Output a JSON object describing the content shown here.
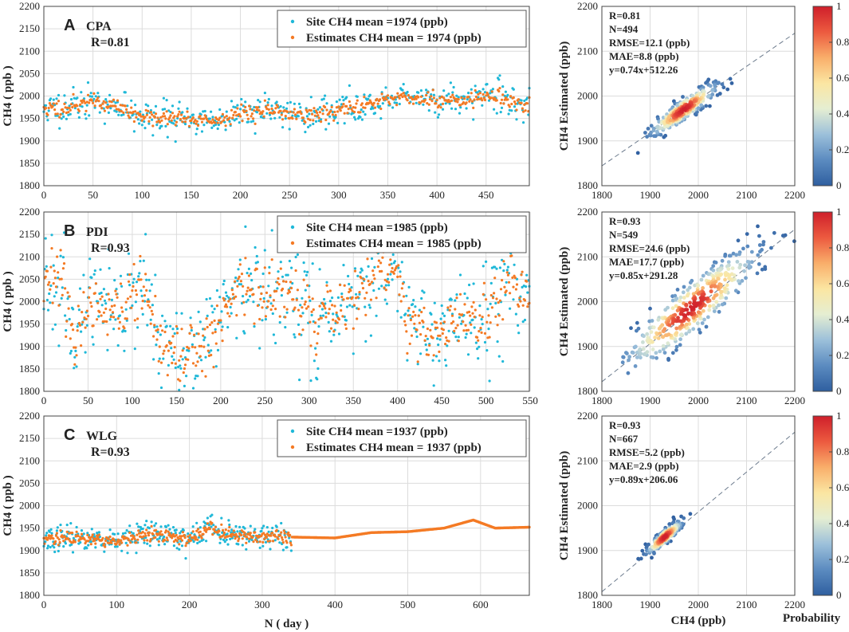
{
  "colors": {
    "site": "#1fb8d8",
    "estimate": "#f47a24",
    "fit_line": "#6b7a8c",
    "colormap": [
      "#2f5fa0",
      "#5b8bc0",
      "#9cc0da",
      "#e5eed2",
      "#fbe6a2",
      "#f9ae6a",
      "#ec5a3f",
      "#cf1f2b"
    ]
  },
  "chart_data": [
    {
      "id": "A",
      "type": "scatter",
      "letter": "A",
      "site": "CPA",
      "r_label": "R=0.81",
      "xlim": [
        0,
        494
      ],
      "ylim": [
        1800,
        2200
      ],
      "xticks": [
        0,
        50,
        100,
        150,
        200,
        250,
        300,
        350,
        400,
        450
      ],
      "yticks": [
        1800,
        1850,
        1900,
        1950,
        2000,
        2050,
        2100,
        2150,
        2200
      ],
      "ylabel": "CH4 ( ppb )",
      "xlabel": "",
      "legend": [
        "Site CH4 mean =1974 (ppb)",
        "Estimates CH4 mean = 1974 (ppb)"
      ],
      "series_profile": {
        "knots_x": [
          0,
          25,
          50,
          75,
          100,
          125,
          150,
          175,
          200,
          225,
          250,
          275,
          300,
          325,
          350,
          375,
          400,
          425,
          450,
          475,
          494
        ],
        "knots_y": [
          1970,
          1975,
          1990,
          1975,
          1955,
          1950,
          1948,
          1945,
          1965,
          1965,
          1962,
          1958,
          1968,
          1980,
          1995,
          1995,
          1990,
          1990,
          2000,
          1992,
          1975
        ],
        "site_noise": 18,
        "estimate_noise": 12,
        "end_day": 494,
        "seed": 11
      },
      "scatter": {
        "R": "R=0.81",
        "N": "N=494",
        "RMSE": "RMSE=12.1 (ppb)",
        "MAE": "MAE=8.8 (ppb)",
        "fit": "y=0.74x+512.26",
        "slope": 0.74,
        "intercept": 512.26,
        "center": [
          1970,
          1970
        ],
        "spread": [
          35,
          22
        ],
        "n_points": 300
      }
    },
    {
      "id": "B",
      "type": "scatter",
      "letter": "B",
      "site": "PDI",
      "r_label": "R=0.93",
      "xlim": [
        0,
        549
      ],
      "ylim": [
        1800,
        2200
      ],
      "xticks": [
        0,
        50,
        100,
        150,
        200,
        250,
        300,
        350,
        400,
        450,
        500,
        550
      ],
      "yticks": [
        1800,
        1850,
        1900,
        1950,
        2000,
        2050,
        2100,
        2150,
        2200
      ],
      "ylabel": "CH4 ( ppb )",
      "xlabel": "",
      "legend": [
        "Site CH4 mean =1985 (ppb)",
        "Estimates CH4 mean = 1985 (ppb)"
      ],
      "series_profile": {
        "knots_x": [
          0,
          15,
          35,
          55,
          80,
          110,
          130,
          160,
          190,
          220,
          250,
          280,
          310,
          340,
          370,
          400,
          410,
          440,
          470,
          500,
          525,
          549
        ],
        "knots_y": [
          2050,
          2080,
          1920,
          1980,
          1960,
          2040,
          1900,
          1890,
          1910,
          2040,
          2010,
          2020,
          1960,
          1990,
          2040,
          2080,
          1930,
          1930,
          1960,
          1950,
          2030,
          2000
        ],
        "site_noise": 60,
        "estimate_noise": 45,
        "end_day": 549,
        "seed": 23
      },
      "scatter": {
        "R": "R=0.93",
        "N": "N=549",
        "RMSE": "RMSE=24.6 (ppb)",
        "MAE": "MAE=17.7 (ppb)",
        "fit": "y=0.85x+291.28",
        "slope": 0.85,
        "intercept": 291.28,
        "center": [
          1985,
          1985
        ],
        "spread": [
          70,
          55
        ],
        "n_points": 420
      }
    },
    {
      "id": "C",
      "type": "scatter",
      "letter": "C",
      "site": "WLG",
      "r_label": "R=0.93",
      "xlim": [
        0,
        667
      ],
      "ylim": [
        1800,
        2200
      ],
      "xticks": [
        0,
        100,
        200,
        300,
        400,
        500,
        600
      ],
      "yticks": [
        1800,
        1850,
        1900,
        1950,
        2000,
        2050,
        2100,
        2150,
        2200
      ],
      "ylabel": "CH4 ( ppb )",
      "xlabel": "N ( day )",
      "legend": [
        "Site CH4 mean =1937 (ppb)",
        "Estimates CH4 mean = 1937 (ppb)"
      ],
      "series_profile": {
        "knots_x": [
          0,
          50,
          100,
          150,
          200,
          225,
          250,
          300,
          340,
          400,
          450,
          500,
          550,
          590,
          620,
          667
        ],
        "knots_y": [
          1925,
          1930,
          1920,
          1935,
          1925,
          1950,
          1940,
          1930,
          1930,
          1928,
          1940,
          1942,
          1950,
          1968,
          1950,
          1952
        ],
        "site_noise": 14,
        "estimate_noise": 10,
        "end_day": 340,
        "seed": 37
      },
      "scatter": {
        "R": "R=0.93",
        "N": "N=667",
        "RMSE": "RMSE=5.2 (ppb)",
        "MAE": "MAE=2.9 (ppb)",
        "fit": "y=0.89x+206.06",
        "slope": 0.89,
        "intercept": 206.06,
        "center": [
          1930,
          1930
        ],
        "spread": [
          18,
          14
        ],
        "n_points": 260
      }
    }
  ],
  "scatter_axes": {
    "xlim": [
      1800,
      2200
    ],
    "ylim": [
      1800,
      2200
    ],
    "ticks": [
      1800,
      1900,
      2000,
      2100,
      2200
    ],
    "ylabel": "CH4 Estimated (ppb)",
    "xlabel": "CH4 (ppb)"
  },
  "colorbar": {
    "ticks": [
      "0",
      "0.2",
      "0.4",
      "0.6",
      "0.8",
      "1"
    ],
    "tick_values": [
      0,
      0.2,
      0.4,
      0.6,
      0.8,
      1
    ],
    "label": "Probability"
  }
}
